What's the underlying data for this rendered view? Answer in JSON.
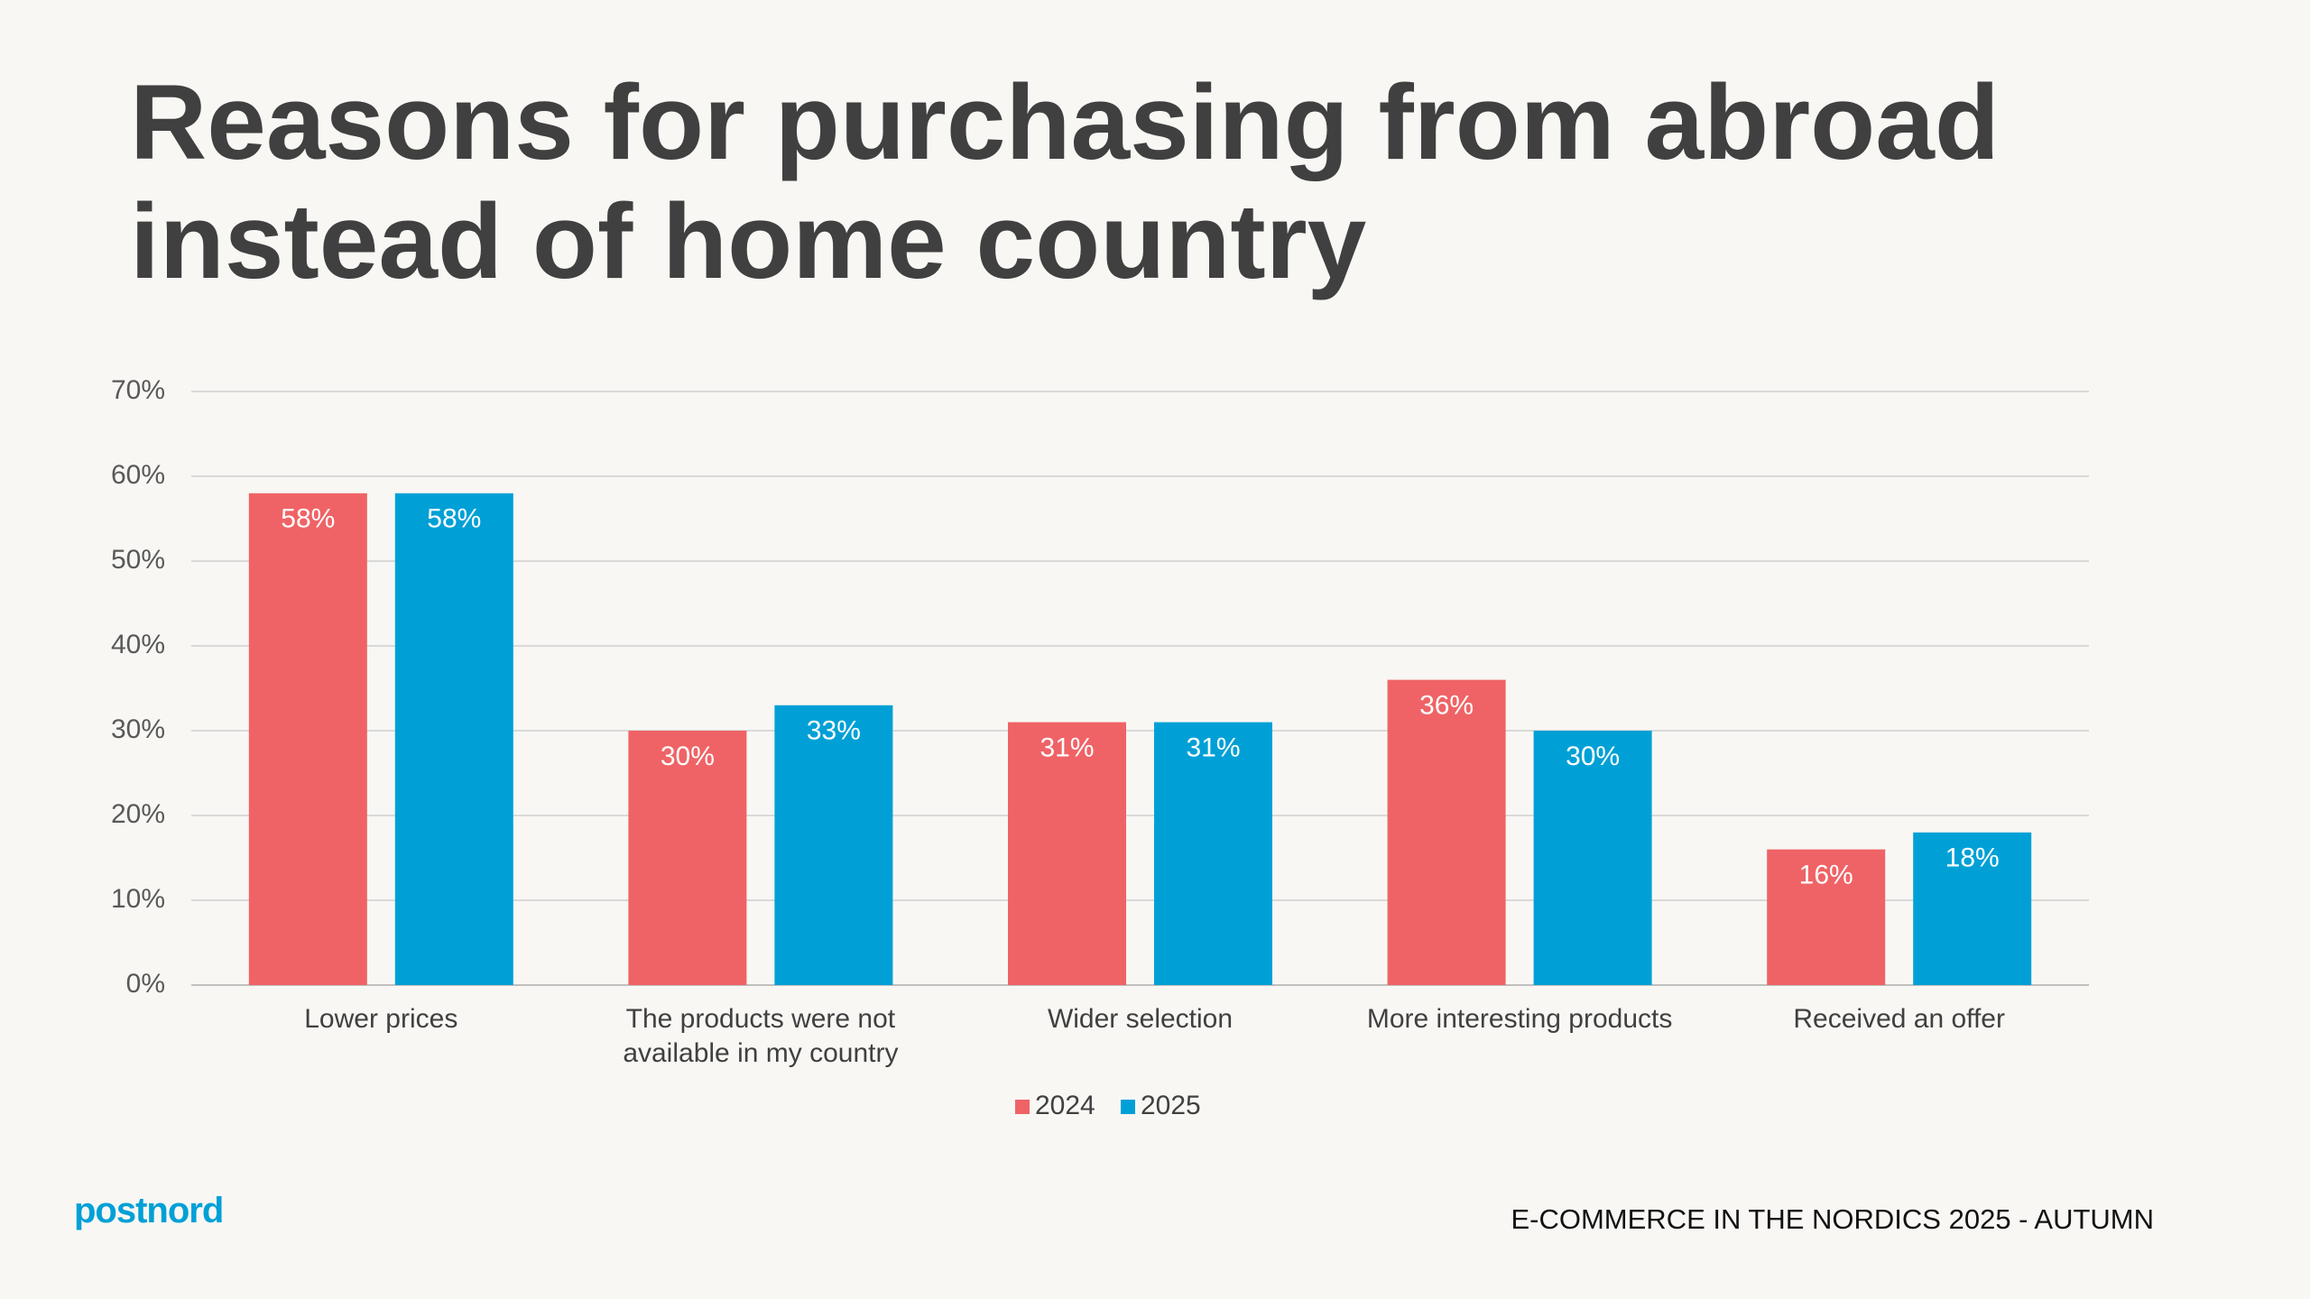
{
  "chart_data": {
    "type": "bar",
    "title": "Reasons for purchasing from abroad instead of home country",
    "categories": [
      "Lower prices",
      "The products were not available in my country",
      "Wider selection",
      "More interesting products",
      "Received an offer"
    ],
    "series": [
      {
        "name": "2024",
        "color": "#ef6366",
        "values": [
          58,
          30,
          31,
          36,
          16
        ],
        "value_labels": [
          "58%",
          "30%",
          "31%",
          "36%",
          "16%"
        ]
      },
      {
        "name": "2025",
        "color": "#00a0d6",
        "values": [
          58,
          33,
          31,
          30,
          18
        ],
        "value_labels": [
          "58%",
          "33%",
          "31%",
          "30%",
          "18%"
        ]
      }
    ],
    "ylim": [
      0,
      70
    ],
    "yticks": [
      {
        "value": 0,
        "label": "0%"
      },
      {
        "value": 10,
        "label": "10%"
      },
      {
        "value": 20,
        "label": "20%"
      },
      {
        "value": 30,
        "label": "30%"
      },
      {
        "value": 40,
        "label": "40%"
      },
      {
        "value": 50,
        "label": "50%"
      },
      {
        "value": 60,
        "label": "60%"
      },
      {
        "value": 70,
        "label": "70%"
      }
    ],
    "grid": true,
    "legend": "bottom"
  },
  "logo": "postnord",
  "footer": "E-COMMERCE IN THE NORDICS 2025 - AUTUMN"
}
